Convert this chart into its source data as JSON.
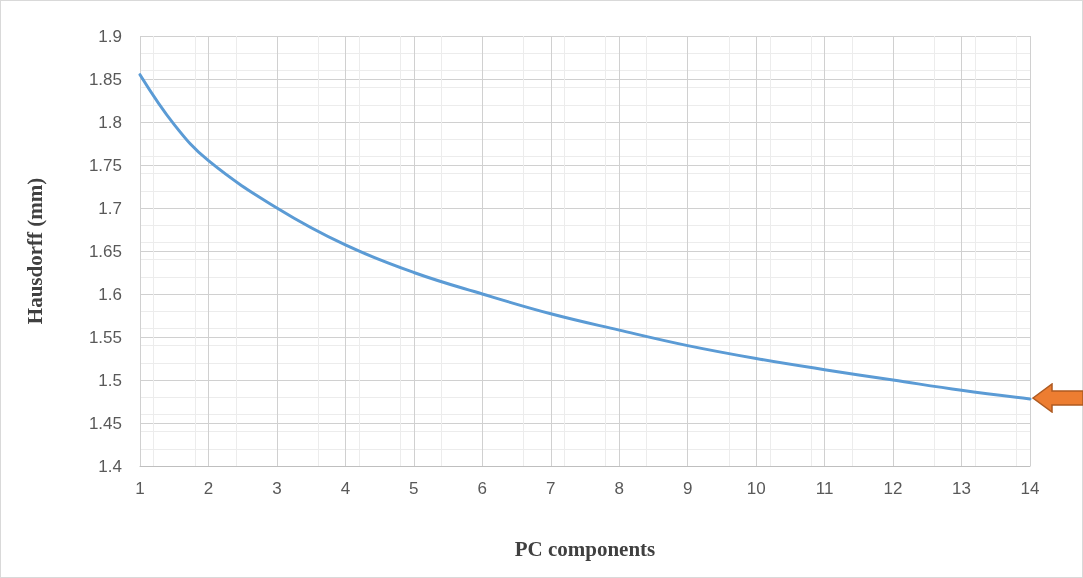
{
  "chart_data": {
    "type": "line",
    "xlabel": "PC components",
    "ylabel": "Hausdorff (mm)",
    "x": [
      1,
      1.5,
      2,
      3,
      4,
      5,
      6,
      7,
      8,
      9,
      10,
      11,
      12,
      13,
      14
    ],
    "series": [
      {
        "color": "#5b9bd5",
        "values": [
          1.855,
          1.797,
          1.755,
          1.7,
          1.657,
          1.625,
          1.6,
          1.577,
          1.558,
          1.54,
          1.525,
          1.512,
          1.5,
          1.488,
          1.478
        ]
      }
    ],
    "xlim": [
      1,
      14
    ],
    "xticks": [
      1,
      2,
      3,
      4,
      5,
      6,
      7,
      8,
      9,
      10,
      11,
      12,
      13,
      14
    ],
    "ylim": [
      1.4,
      1.9
    ],
    "yticks": [
      1.4,
      1.45,
      1.5,
      1.55,
      1.6,
      1.65,
      1.7,
      1.75,
      1.8,
      1.85,
      1.9
    ],
    "grid": true,
    "marker": "none",
    "line_style": "solid"
  }
}
